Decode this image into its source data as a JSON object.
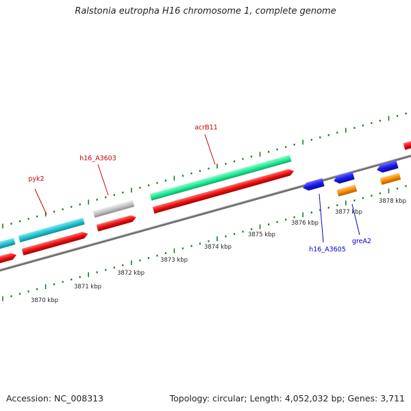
{
  "header": {
    "title": "Ralstonia eutropha H16 chromosome 1, complete genome"
  },
  "footer": {
    "accession": "Accession: NC_008313",
    "summary": "Topology: circular; Length: 4,052,032 bp; Genes: 3,711"
  },
  "scale_labels": [
    "3870 kbp",
    "3871 kbp",
    "3872 kbp",
    "3873 kbp",
    "3874 kbp",
    "3875 kbp",
    "3876 kbp",
    "3877 kbp",
    "3878 kbp"
  ],
  "gene_labels": [
    {
      "text": "pyk2",
      "color": "#cc0000"
    },
    {
      "text": "h16_A3603",
      "color": "#cc0000"
    },
    {
      "text": "acrB11",
      "color": "#cc0000"
    },
    {
      "text": "h16_A3605",
      "color": "#0000cc"
    },
    {
      "text": "greA2",
      "color": "#0000cc"
    }
  ],
  "colors": {
    "backbone": "#808080",
    "tick": "#1a7a1a",
    "cds": "#ee1111",
    "gene_cyan": "#22c4d4",
    "gene_green": "#22ee99",
    "gene_grey": "#c4c4c4",
    "gene_blue": "#1a1aee",
    "gene_orange": "#ff8c00"
  }
}
